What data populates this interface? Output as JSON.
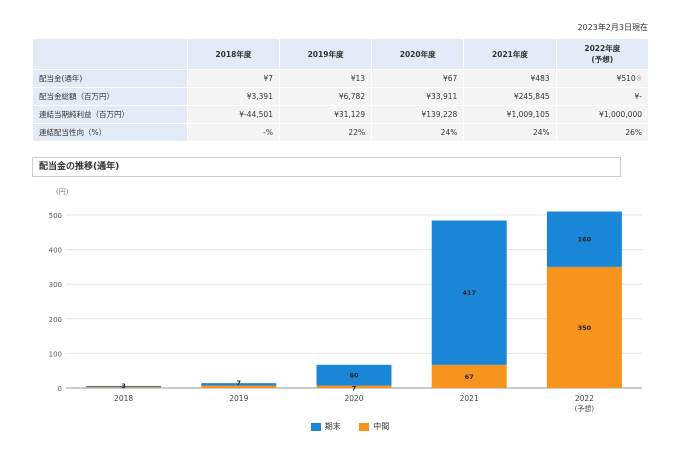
{
  "as_of": "2023年2月3日現在",
  "table": {
    "headers": [
      "2018年度",
      "2019年度",
      "2020年度",
      "2021年度",
      "2022年度",
      "(予想)"
    ],
    "rows": [
      {
        "label": "配当金(通年)",
        "values": [
          "¥7",
          "¥13",
          "¥67",
          "¥483",
          "¥510"
        ],
        "note": "※"
      },
      {
        "label": "配当金総額（百万円）",
        "values": [
          "¥3,391",
          "¥6,782",
          "¥33,911",
          "¥245,845",
          "¥-"
        ],
        "note": ""
      },
      {
        "label": "連結当期純利益（百万円）",
        "values": [
          "¥-44,501",
          "¥31,129",
          "¥139,228",
          "¥1,009,105",
          "¥1,000,000"
        ],
        "note": ""
      },
      {
        "label": "連結配当性向（%）",
        "values": [
          "-%",
          "22%",
          "24%",
          "24%",
          "26%"
        ],
        "note": ""
      }
    ]
  },
  "section_title": "配当金の推移(通年)",
  "chart_data": {
    "type": "bar",
    "stacked": true,
    "y_unit": "(円)",
    "ylim": [
      0,
      500
    ],
    "yticks": [
      0,
      100,
      200,
      300,
      400,
      500
    ],
    "categories": [
      "2018",
      "2019",
      "2020",
      "2021",
      "2022"
    ],
    "category_sublabels": [
      "",
      "",
      "",
      "",
      "(予想)"
    ],
    "series": [
      {
        "name": "中間",
        "color": "#f7941d",
        "values": [
          3,
          7,
          7,
          67,
          350
        ]
      },
      {
        "name": "期末",
        "color": "#1a86d8",
        "values": [
          3,
          7,
          60,
          417,
          160
        ]
      }
    ],
    "data_labels": [
      {
        "category": "2018",
        "text": "3"
      },
      {
        "category": "2019",
        "text": "7"
      },
      {
        "category": "2020",
        "series": "期末",
        "text": "60"
      },
      {
        "category": "2020",
        "series": "中間",
        "text": "7"
      },
      {
        "category": "2021",
        "series": "期末",
        "text": "417"
      },
      {
        "category": "2021",
        "series": "中間",
        "text": "67"
      },
      {
        "category": "2022",
        "series": "期末",
        "text": "160"
      },
      {
        "category": "2022",
        "series": "中間",
        "text": "350"
      }
    ],
    "legend": [
      "期末",
      "中間"
    ],
    "legend_position": "bottom",
    "grid": true
  }
}
